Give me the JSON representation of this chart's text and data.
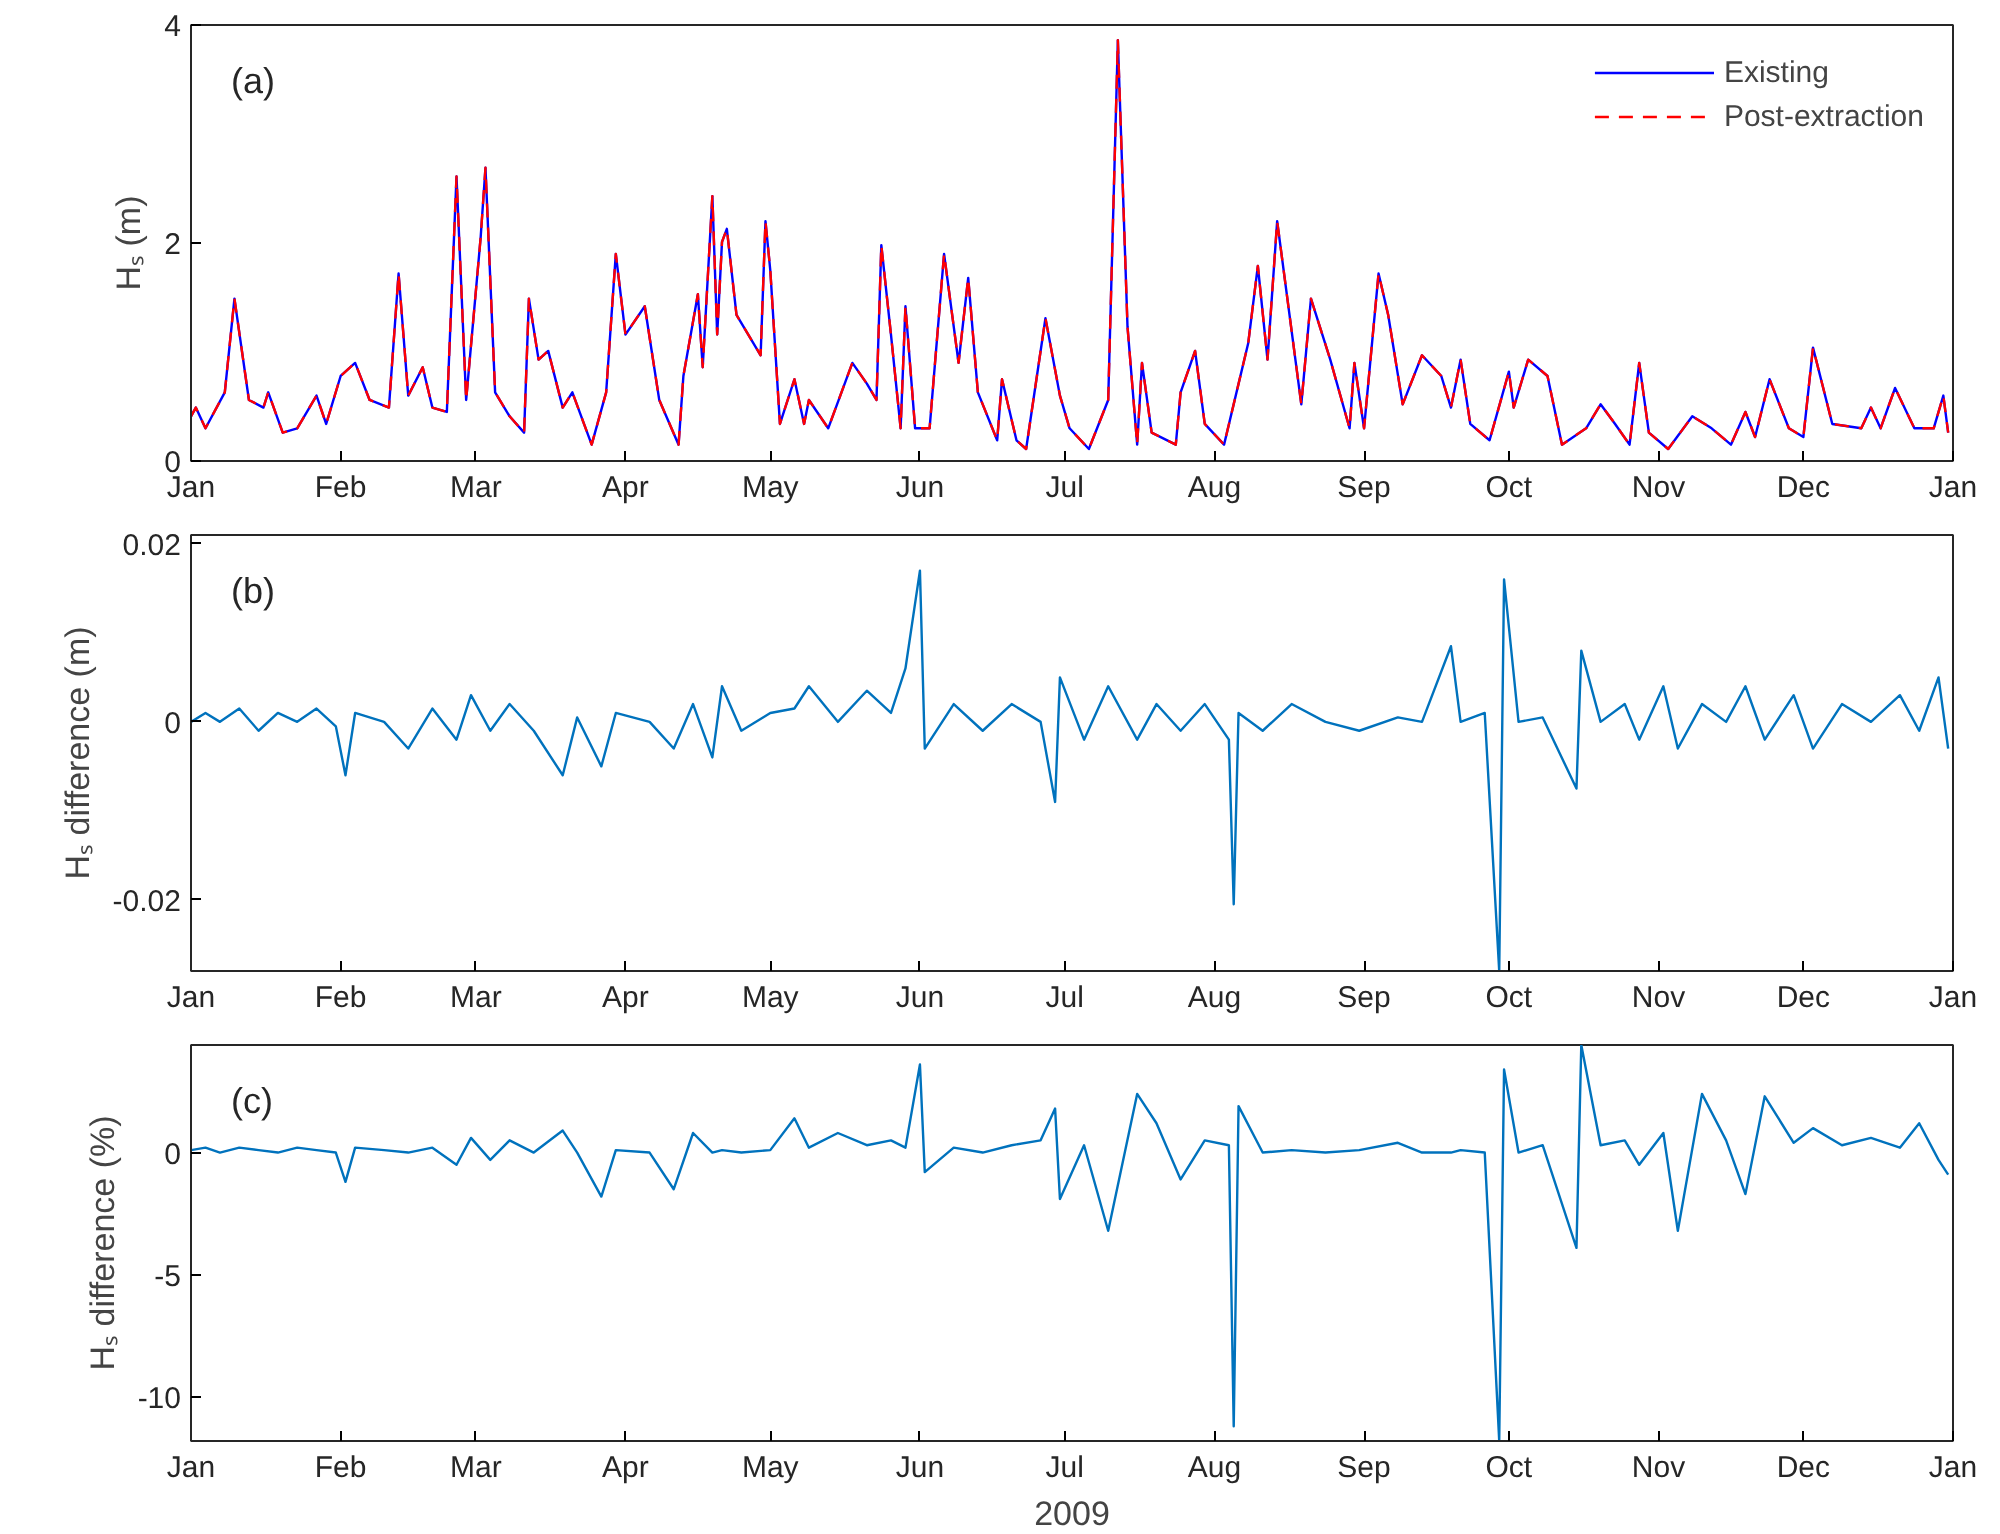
{
  "chart_data": [
    {
      "type": "line",
      "ylabel": "Hₛ (m)",
      "annotations": [
        "(a)"
      ],
      "legend": "top right",
      "grid": false,
      "xlim": [
        "2009-01-01",
        "2010-01-01"
      ],
      "xticks": [
        {
          "value": "2009-01-01",
          "label": "Jan"
        },
        {
          "value": "2009-02-01",
          "label": "Feb"
        },
        {
          "value": "2009-03-01",
          "label": "Mar"
        },
        {
          "value": "2009-04-01",
          "label": "Apr"
        },
        {
          "value": "2009-05-01",
          "label": "May"
        },
        {
          "value": "2009-06-01",
          "label": "Jun"
        },
        {
          "value": "2009-07-01",
          "label": "Jul"
        },
        {
          "value": "2009-08-01",
          "label": "Aug"
        },
        {
          "value": "2009-09-01",
          "label": "Sep"
        },
        {
          "value": "2009-10-01",
          "label": "Oct"
        },
        {
          "value": "2009-11-01",
          "label": "Nov"
        },
        {
          "value": "2009-12-01",
          "label": "Dec"
        },
        {
          "value": "2010-01-01",
          "label": "Jan"
        }
      ],
      "ylim": [
        0,
        4
      ],
      "yticks": [
        0,
        2,
        4
      ],
      "x": [
        "2009-01-01",
        "2009-01-02",
        "2009-01-04",
        "2009-01-08",
        "2009-01-10",
        "2009-01-13",
        "2009-01-16",
        "2009-01-17",
        "2009-01-20",
        "2009-01-23",
        "2009-01-27",
        "2009-01-29",
        "2009-02-01",
        "2009-02-04",
        "2009-02-07",
        "2009-02-11",
        "2009-02-13",
        "2009-02-15",
        "2009-02-18",
        "2009-02-20",
        "2009-02-23",
        "2009-02-25",
        "2009-02-27",
        "2009-03-02",
        "2009-03-03",
        "2009-03-05",
        "2009-03-08",
        "2009-03-11",
        "2009-03-12",
        "2009-03-14",
        "2009-03-16",
        "2009-03-19",
        "2009-03-21",
        "2009-03-25",
        "2009-03-28",
        "2009-03-30",
        "2009-04-01",
        "2009-04-05",
        "2009-04-08",
        "2009-04-12",
        "2009-04-13",
        "2009-04-16",
        "2009-04-17",
        "2009-04-19",
        "2009-04-20",
        "2009-04-21",
        "2009-04-22",
        "2009-04-24",
        "2009-04-29",
        "2009-04-30",
        "2009-05-01",
        "2009-05-03",
        "2009-05-06",
        "2009-05-08",
        "2009-05-09",
        "2009-05-13",
        "2009-05-18",
        "2009-05-21",
        "2009-05-23",
        "2009-05-24",
        "2009-05-26",
        "2009-05-28",
        "2009-05-29",
        "2009-05-31",
        "2009-06-03",
        "2009-06-06",
        "2009-06-09",
        "2009-06-11",
        "2009-06-13",
        "2009-06-17",
        "2009-06-18",
        "2009-06-21",
        "2009-06-23",
        "2009-06-27",
        "2009-06-30",
        "2009-07-02",
        "2009-07-06",
        "2009-07-10",
        "2009-07-12",
        "2009-07-14",
        "2009-07-16",
        "2009-07-17",
        "2009-07-19",
        "2009-07-24",
        "2009-07-25",
        "2009-07-28",
        "2009-07-30",
        "2009-08-03",
        "2009-08-08",
        "2009-08-10",
        "2009-08-12",
        "2009-08-14",
        "2009-08-19",
        "2009-08-21",
        "2009-08-25",
        "2009-08-29",
        "2009-08-30",
        "2009-09-01",
        "2009-09-04",
        "2009-09-06",
        "2009-09-09",
        "2009-09-13",
        "2009-09-17",
        "2009-09-19",
        "2009-09-21",
        "2009-09-23",
        "2009-09-27",
        "2009-10-01",
        "2009-10-02",
        "2009-10-05",
        "2009-10-09",
        "2009-10-12",
        "2009-10-17",
        "2009-10-20",
        "2009-10-23",
        "2009-10-26",
        "2009-10-28",
        "2009-10-30",
        "2009-11-03",
        "2009-11-08",
        "2009-11-12",
        "2009-11-16",
        "2009-11-19",
        "2009-11-21",
        "2009-11-24",
        "2009-11-28",
        "2009-12-01",
        "2009-12-03",
        "2009-12-07",
        "2009-12-13",
        "2009-12-15",
        "2009-12-17",
        "2009-12-20",
        "2009-12-24",
        "2009-12-28",
        "2009-12-30",
        "2009-12-31"
      ],
      "series": [
        {
          "name": "Existing",
          "color": "#0000ff",
          "line_style": "solid",
          "values": [
            0.41,
            0.49,
            0.3,
            0.63,
            1.49,
            0.56,
            0.49,
            0.63,
            0.26,
            0.3,
            0.6,
            0.34,
            0.78,
            0.9,
            0.56,
            0.49,
            1.72,
            0.6,
            0.86,
            0.49,
            0.45,
            2.61,
            0.56,
            2.05,
            2.69,
            0.63,
            0.41,
            0.26,
            1.49,
            0.93,
            1.01,
            0.49,
            0.63,
            0.15,
            0.63,
            1.9,
            1.16,
            1.42,
            0.56,
            0.15,
            0.78,
            1.53,
            0.86,
            2.43,
            1.16,
            2.01,
            2.13,
            1.34,
            0.97,
            2.2,
            1.75,
            0.34,
            0.75,
            0.34,
            0.56,
            0.3,
            0.9,
            0.71,
            0.56,
            1.98,
            1.16,
            0.3,
            1.42,
            0.3,
            0.3,
            1.9,
            0.9,
            1.68,
            0.63,
            0.19,
            0.75,
            0.19,
            0.11,
            1.31,
            0.6,
            0.3,
            0.11,
            0.56,
            3.86,
            1.23,
            0.15,
            0.9,
            0.26,
            0.15,
            0.63,
            1.01,
            0.34,
            0.15,
            1.08,
            1.79,
            0.93,
            2.2,
            0.52,
            1.49,
            0.93,
            0.3,
            0.9,
            0.3,
            1.72,
            1.34,
            0.52,
            0.97,
            0.78,
            0.49,
            0.93,
            0.34,
            0.19,
            0.82,
            0.49,
            0.93,
            0.78,
            0.15,
            0.3,
            0.52,
            0.34,
            0.15,
            0.9,
            0.26,
            0.11,
            0.41,
            0.3,
            0.15,
            0.45,
            0.22,
            0.75,
            0.3,
            0.22,
            1.04,
            0.34,
            0.3,
            0.49,
            0.3,
            0.67,
            0.3,
            0.3,
            0.6,
            0.26
          ]
        },
        {
          "name": "Post-extraction",
          "color": "#ff0000",
          "line_style": "dashed",
          "values": [
            0.41,
            0.49,
            0.3,
            0.63,
            1.49,
            0.56,
            0.49,
            0.63,
            0.26,
            0.3,
            0.6,
            0.34,
            0.78,
            0.9,
            0.56,
            0.49,
            1.72,
            0.6,
            0.86,
            0.49,
            0.45,
            2.61,
            0.56,
            2.05,
            2.69,
            0.63,
            0.41,
            0.26,
            1.49,
            0.93,
            1.01,
            0.49,
            0.63,
            0.15,
            0.63,
            1.9,
            1.16,
            1.42,
            0.56,
            0.15,
            0.78,
            1.53,
            0.86,
            2.43,
            1.16,
            2.01,
            2.13,
            1.34,
            0.97,
            2.2,
            1.75,
            0.34,
            0.75,
            0.34,
            0.56,
            0.3,
            0.9,
            0.71,
            0.56,
            1.98,
            1.16,
            0.3,
            1.42,
            0.3,
            0.3,
            1.9,
            0.9,
            1.68,
            0.63,
            0.19,
            0.75,
            0.19,
            0.11,
            1.31,
            0.6,
            0.3,
            0.11,
            0.56,
            3.86,
            1.23,
            0.15,
            0.9,
            0.26,
            0.15,
            0.63,
            1.01,
            0.34,
            0.15,
            1.08,
            1.79,
            0.93,
            2.2,
            0.52,
            1.49,
            0.93,
            0.3,
            0.9,
            0.3,
            1.72,
            1.34,
            0.52,
            0.97,
            0.78,
            0.49,
            0.93,
            0.34,
            0.19,
            0.82,
            0.49,
            0.93,
            0.78,
            0.15,
            0.3,
            0.52,
            0.34,
            0.15,
            0.9,
            0.26,
            0.11,
            0.41,
            0.3,
            0.15,
            0.45,
            0.22,
            0.75,
            0.3,
            0.22,
            1.04,
            0.34,
            0.3,
            0.49,
            0.3,
            0.67,
            0.3,
            0.3,
            0.6,
            0.26
          ]
        }
      ]
    },
    {
      "type": "line",
      "ylabel": "Hₛ difference (m)",
      "annotations": [
        "(b)"
      ],
      "grid": false,
      "xlim": [
        "2009-01-01",
        "2010-01-01"
      ],
      "xticks": [
        {
          "value": "2009-01-01",
          "label": "Jan"
        },
        {
          "value": "2009-02-01",
          "label": "Feb"
        },
        {
          "value": "2009-03-01",
          "label": "Mar"
        },
        {
          "value": "2009-04-01",
          "label": "Apr"
        },
        {
          "value": "2009-05-01",
          "label": "May"
        },
        {
          "value": "2009-06-01",
          "label": "Jun"
        },
        {
          "value": "2009-07-01",
          "label": "Jul"
        },
        {
          "value": "2009-08-01",
          "label": "Aug"
        },
        {
          "value": "2009-09-01",
          "label": "Sep"
        },
        {
          "value": "2009-10-01",
          "label": "Oct"
        },
        {
          "value": "2009-11-01",
          "label": "Nov"
        },
        {
          "value": "2009-12-01",
          "label": "Dec"
        },
        {
          "value": "2010-01-01",
          "label": "Jan"
        }
      ],
      "ylim": [
        -0.028,
        0.021
      ],
      "yticks": [
        -0.02,
        0,
        0.02
      ],
      "x": [
        "2009-01-01",
        "2009-01-04",
        "2009-01-07",
        "2009-01-11",
        "2009-01-15",
        "2009-01-19",
        "2009-01-23",
        "2009-01-27",
        "2009-01-31",
        "2009-02-02",
        "2009-02-04",
        "2009-02-10",
        "2009-02-15",
        "2009-02-20",
        "2009-02-25",
        "2009-02-28",
        "2009-03-04",
        "2009-03-08",
        "2009-03-13",
        "2009-03-19",
        "2009-03-22",
        "2009-03-27",
        "2009-03-30",
        "2009-04-06",
        "2009-04-11",
        "2009-04-15",
        "2009-04-19",
        "2009-04-21",
        "2009-04-25",
        "2009-05-01",
        "2009-05-06",
        "2009-05-09",
        "2009-05-15",
        "2009-05-21",
        "2009-05-26",
        "2009-05-29",
        "2009-06-01",
        "2009-06-02",
        "2009-06-08",
        "2009-06-14",
        "2009-06-20",
        "2009-06-26",
        "2009-06-29",
        "2009-06-30",
        "2009-07-05",
        "2009-07-10",
        "2009-07-16",
        "2009-07-20",
        "2009-07-25",
        "2009-07-30",
        "2009-08-04",
        "2009-08-05",
        "2009-08-06",
        "2009-08-11",
        "2009-08-17",
        "2009-08-24",
        "2009-08-31",
        "2009-09-08",
        "2009-09-13",
        "2009-09-19",
        "2009-09-21",
        "2009-09-26",
        "2009-09-29",
        "2009-09-30",
        "2009-10-03",
        "2009-10-08",
        "2009-10-15",
        "2009-10-16",
        "2009-10-20",
        "2009-10-25",
        "2009-10-28",
        "2009-11-02",
        "2009-11-05",
        "2009-11-10",
        "2009-11-15",
        "2009-11-19",
        "2009-11-23",
        "2009-11-29",
        "2009-12-03",
        "2009-12-09",
        "2009-12-15",
        "2009-12-21",
        "2009-12-25",
        "2009-12-29",
        "2009-12-31"
      ],
      "series": [
        {
          "color": "#0072bd",
          "values": [
            0.0,
            0.001,
            0.0,
            0.0015,
            -0.001,
            0.001,
            0.0,
            0.0015,
            -0.0005,
            -0.006,
            0.001,
            0.0,
            -0.003,
            0.0015,
            -0.002,
            0.003,
            -0.001,
            0.002,
            -0.001,
            -0.006,
            0.0005,
            -0.005,
            0.001,
            0.0,
            -0.003,
            0.002,
            -0.004,
            0.004,
            -0.001,
            0.001,
            0.0015,
            0.004,
            0.0,
            0.0035,
            0.001,
            0.006,
            0.017,
            -0.003,
            0.002,
            -0.001,
            0.002,
            0.0,
            -0.009,
            0.005,
            -0.002,
            0.004,
            -0.002,
            0.002,
            -0.001,
            0.002,
            -0.002,
            -0.0205,
            0.001,
            -0.001,
            0.002,
            0.0,
            -0.001,
            0.0005,
            0.0,
            0.0085,
            0.0,
            0.001,
            -0.028,
            0.016,
            0.0,
            0.0005,
            -0.0075,
            0.008,
            0.0,
            0.002,
            -0.002,
            0.004,
            -0.003,
            0.002,
            0.0,
            0.004,
            -0.002,
            0.003,
            -0.003,
            0.002,
            0.0,
            0.003,
            -0.001,
            0.005,
            -0.003
          ]
        }
      ]
    },
    {
      "type": "line",
      "ylabel": "Hₛ difference (%)",
      "xlabel": "2009",
      "annotations": [
        "(c)"
      ],
      "grid": false,
      "xlim": [
        "2009-01-01",
        "2010-01-01"
      ],
      "xticks": [
        {
          "value": "2009-01-01",
          "label": "Jan"
        },
        {
          "value": "2009-02-01",
          "label": "Feb"
        },
        {
          "value": "2009-03-01",
          "label": "Mar"
        },
        {
          "value": "2009-04-01",
          "label": "Apr"
        },
        {
          "value": "2009-05-01",
          "label": "May"
        },
        {
          "value": "2009-06-01",
          "label": "Jun"
        },
        {
          "value": "2009-07-01",
          "label": "Jul"
        },
        {
          "value": "2009-08-01",
          "label": "Aug"
        },
        {
          "value": "2009-09-01",
          "label": "Sep"
        },
        {
          "value": "2009-10-01",
          "label": "Oct"
        },
        {
          "value": "2009-11-01",
          "label": "Nov"
        },
        {
          "value": "2009-12-01",
          "label": "Dec"
        },
        {
          "value": "2010-01-01",
          "label": "Jan"
        }
      ],
      "ylim": [
        -11.8,
        4.4
      ],
      "yticks": [
        -10,
        -5,
        0
      ],
      "x": [
        "2009-01-01",
        "2009-01-04",
        "2009-01-07",
        "2009-01-11",
        "2009-01-15",
        "2009-01-19",
        "2009-01-23",
        "2009-01-27",
        "2009-01-31",
        "2009-02-02",
        "2009-02-04",
        "2009-02-10",
        "2009-02-15",
        "2009-02-20",
        "2009-02-25",
        "2009-02-28",
        "2009-03-04",
        "2009-03-08",
        "2009-03-13",
        "2009-03-19",
        "2009-03-22",
        "2009-03-27",
        "2009-03-30",
        "2009-04-06",
        "2009-04-11",
        "2009-04-15",
        "2009-04-19",
        "2009-04-21",
        "2009-04-25",
        "2009-05-01",
        "2009-05-06",
        "2009-05-09",
        "2009-05-15",
        "2009-05-21",
        "2009-05-26",
        "2009-05-29",
        "2009-06-01",
        "2009-06-02",
        "2009-06-08",
        "2009-06-14",
        "2009-06-20",
        "2009-06-26",
        "2009-06-29",
        "2009-06-30",
        "2009-07-05",
        "2009-07-10",
        "2009-07-16",
        "2009-07-20",
        "2009-07-25",
        "2009-07-30",
        "2009-08-04",
        "2009-08-05",
        "2009-08-06",
        "2009-08-11",
        "2009-08-17",
        "2009-08-24",
        "2009-08-31",
        "2009-09-08",
        "2009-09-13",
        "2009-09-19",
        "2009-09-21",
        "2009-09-26",
        "2009-09-29",
        "2009-09-30",
        "2009-10-03",
        "2009-10-08",
        "2009-10-15",
        "2009-10-16",
        "2009-10-20",
        "2009-10-25",
        "2009-10-28",
        "2009-11-02",
        "2009-11-05",
        "2009-11-10",
        "2009-11-15",
        "2009-11-19",
        "2009-11-23",
        "2009-11-29",
        "2009-12-03",
        "2009-12-09",
        "2009-12-15",
        "2009-12-21",
        "2009-12-25",
        "2009-12-29",
        "2009-12-31"
      ],
      "series": [
        {
          "color": "#0072bd",
          "values": [
            0.1,
            0.2,
            0.0,
            0.2,
            0.1,
            0.0,
            0.2,
            0.1,
            0.0,
            -1.2,
            0.2,
            0.1,
            0.0,
            0.2,
            -0.5,
            0.6,
            -0.3,
            0.5,
            0.0,
            0.9,
            0.0,
            -1.8,
            0.1,
            0.0,
            -1.5,
            0.8,
            0.0,
            0.1,
            0.0,
            0.1,
            1.4,
            0.2,
            0.8,
            0.3,
            0.5,
            0.2,
            3.6,
            -0.8,
            0.2,
            0.0,
            0.3,
            0.5,
            1.8,
            -1.9,
            0.3,
            -3.2,
            2.4,
            1.2,
            -1.1,
            0.5,
            0.3,
            -11.2,
            1.9,
            0.0,
            0.1,
            0.0,
            0.1,
            0.4,
            0.0,
            0.0,
            0.1,
            0.0,
            -11.8,
            3.4,
            0.0,
            0.3,
            -3.9,
            4.4,
            0.3,
            0.5,
            -0.5,
            0.8,
            -3.2,
            2.4,
            0.5,
            -1.7,
            2.3,
            0.4,
            1.0,
            0.3,
            0.6,
            0.2,
            1.2,
            -0.3,
            -0.9
          ]
        }
      ]
    }
  ]
}
